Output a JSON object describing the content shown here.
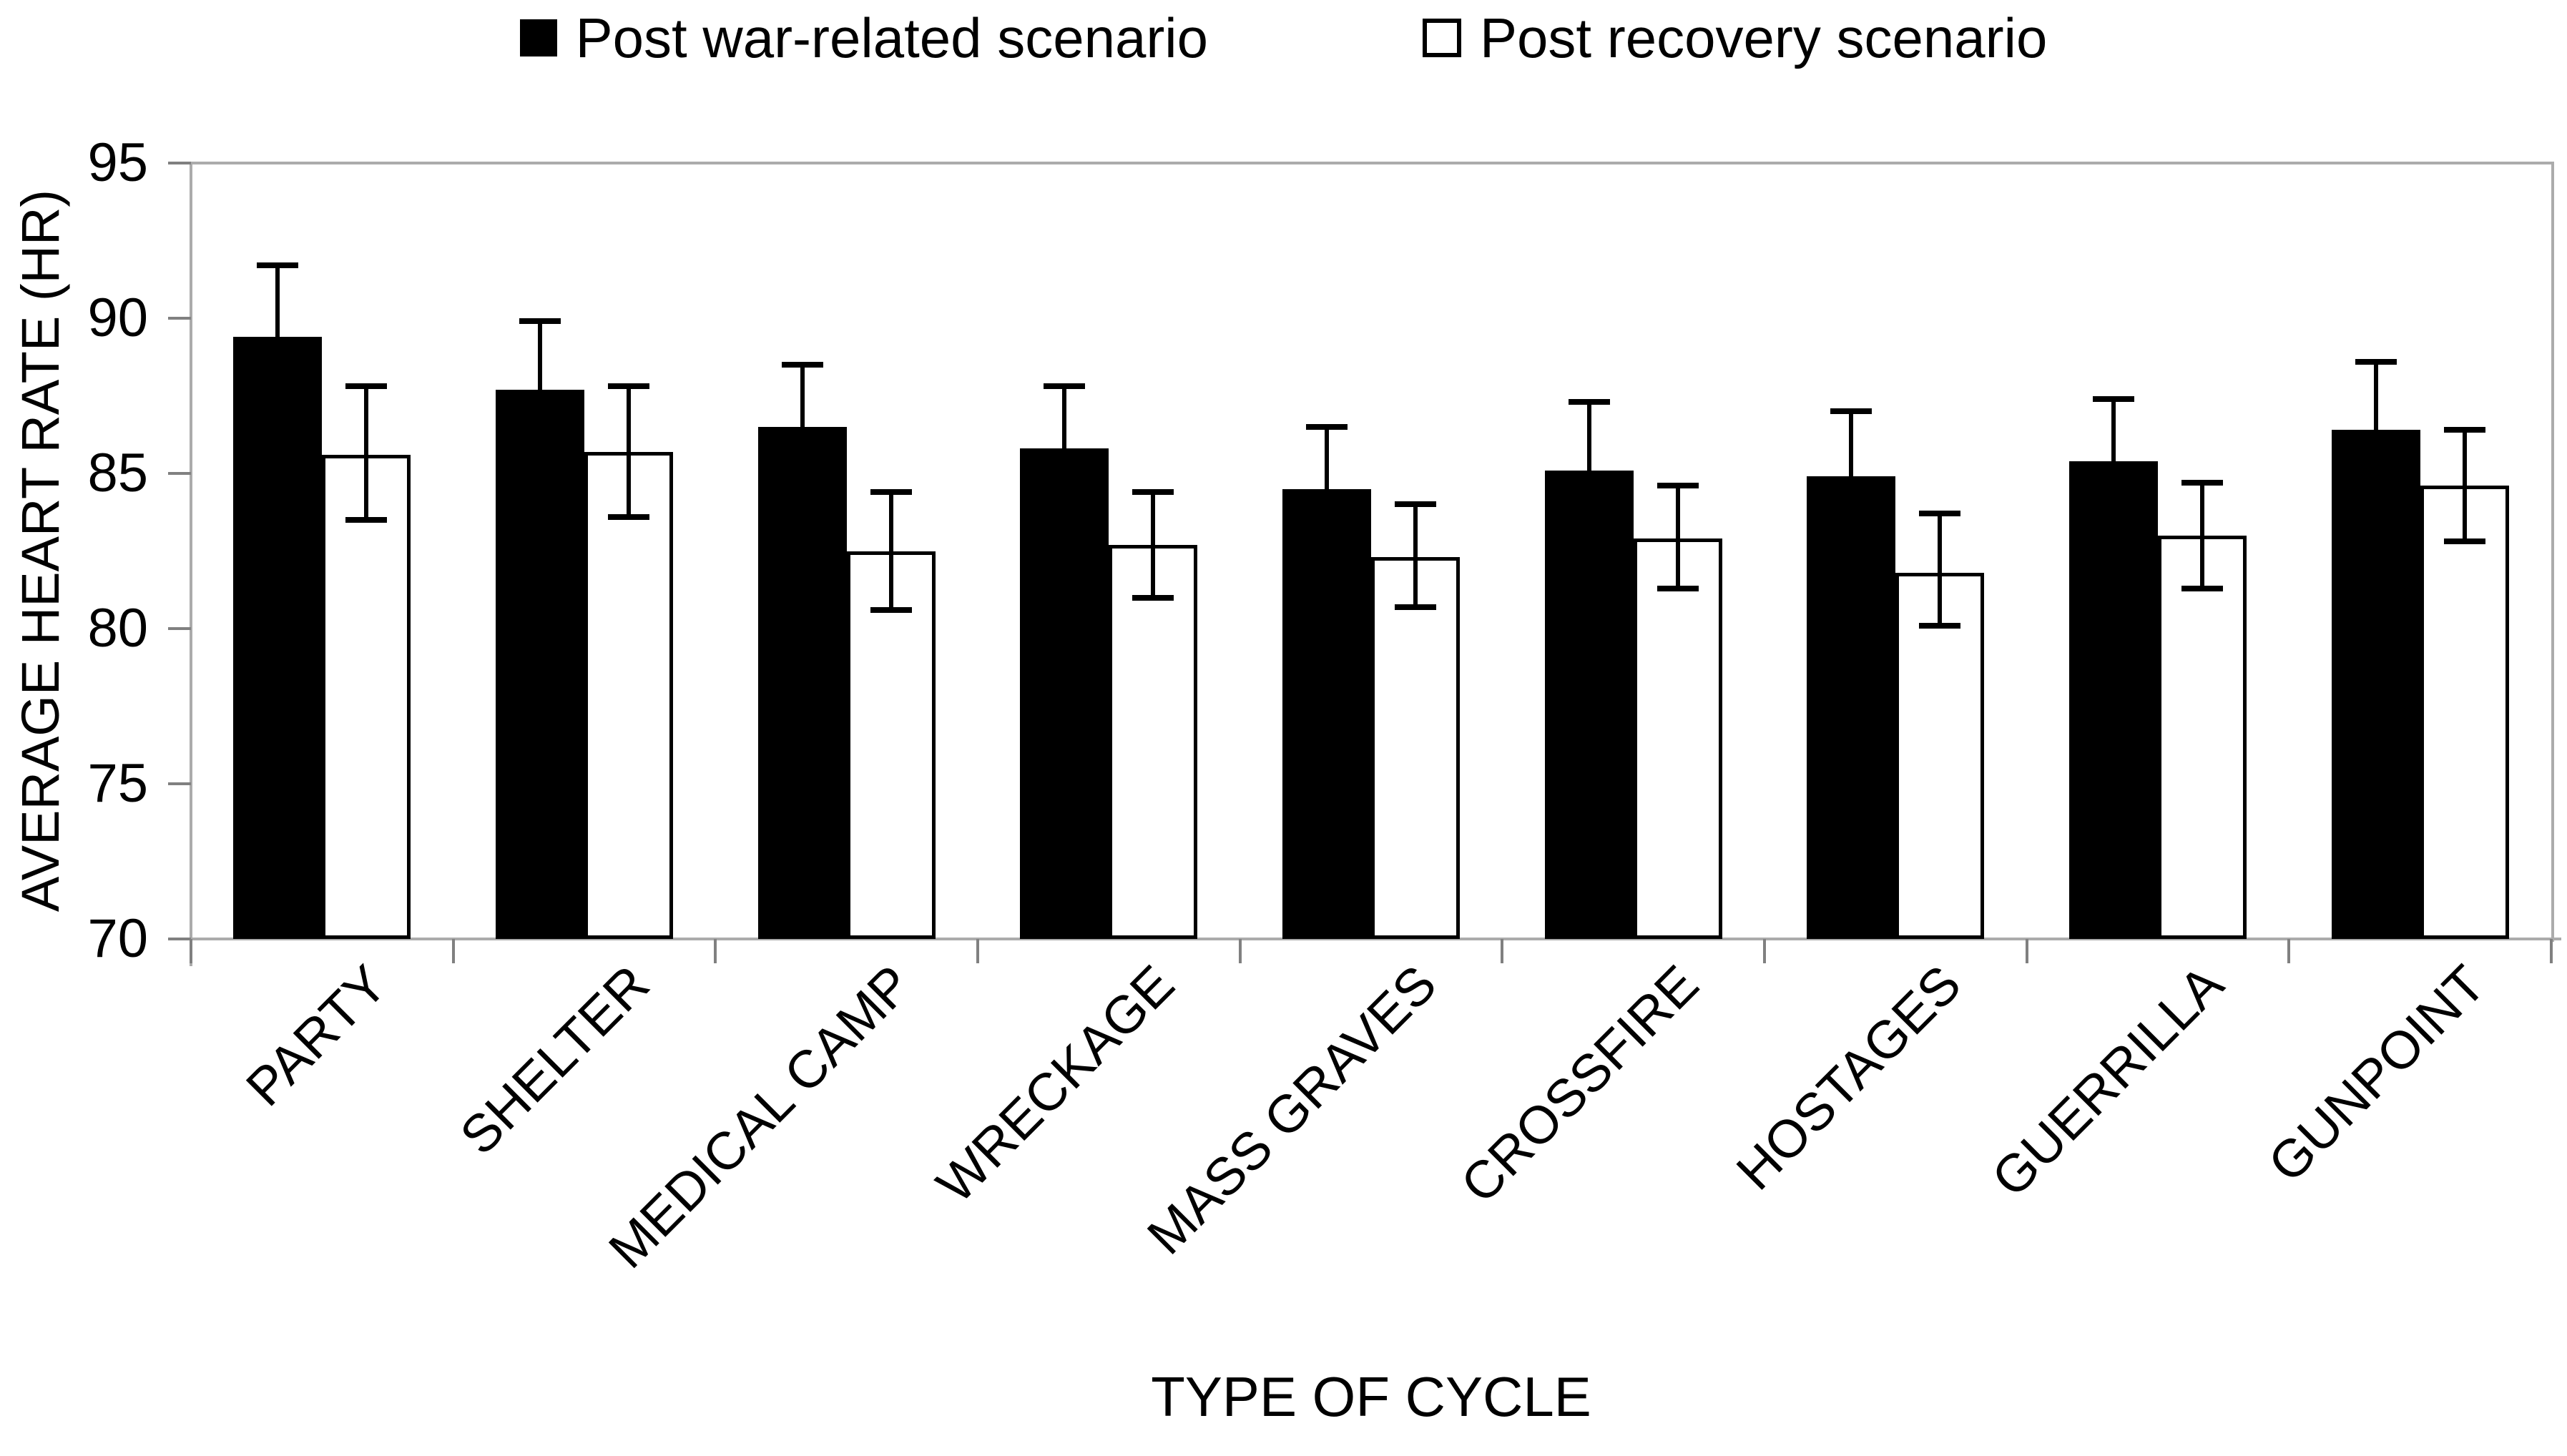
{
  "legend": {
    "items": [
      {
        "label": "Post war-related scenario",
        "swatch": "filled-square-icon"
      },
      {
        "label": "Post recovery scenario",
        "swatch": "open-square-icon"
      }
    ]
  },
  "axes": {
    "y_title": "AVERAGE HEART RATE (HR)",
    "x_title": "TYPE OF CYCLE",
    "y_tick_labels": [
      "95",
      "90",
      "85",
      "80",
      "75",
      "70"
    ]
  },
  "chart_data": {
    "type": "bar",
    "title": "",
    "xlabel": "TYPE OF CYCLE",
    "ylabel": "AVERAGE HEART RATE (HR)",
    "ylim": [
      70,
      95
    ],
    "yticks": [
      95,
      90,
      85,
      80,
      75,
      70
    ],
    "grid": false,
    "legend_position": "top-center",
    "bar_baseline": 70,
    "categories": [
      "PARTY",
      "SHELTER",
      "MEDICAL CAMP",
      "WRECKAGE",
      "MASS GRAVES",
      "CROSSFIRE",
      "HOSTAGES",
      "GUERRILLA",
      "GUNPOINT"
    ],
    "series": [
      {
        "name": "Post war-related scenario",
        "style": "filled-black",
        "values": [
          89.4,
          87.7,
          86.5,
          85.8,
          84.5,
          85.1,
          84.9,
          85.4,
          86.4
        ],
        "error_up": [
          2.3,
          2.2,
          2.0,
          2.0,
          2.0,
          2.2,
          2.1,
          2.0,
          2.2
        ],
        "error_down_drawn": false
      },
      {
        "name": "Post recovery scenario",
        "style": "open-white",
        "values": [
          85.6,
          85.7,
          82.5,
          82.7,
          82.3,
          82.9,
          81.8,
          83.0,
          84.6
        ],
        "error_up": [
          2.2,
          2.1,
          1.9,
          1.7,
          1.7,
          1.7,
          1.9,
          1.7,
          1.8
        ],
        "error_down": [
          2.1,
          2.1,
          1.9,
          1.7,
          1.6,
          1.6,
          1.7,
          1.7,
          1.8
        ]
      }
    ]
  },
  "colors": {
    "bar_fill": "#000000",
    "bar_open_fill": "#ffffff",
    "bar_border": "#000000",
    "error_bar": "#000000",
    "axis_line": "#ababab",
    "tick_mark": "#808080",
    "text": "#000000",
    "background": "#ffffff"
  }
}
